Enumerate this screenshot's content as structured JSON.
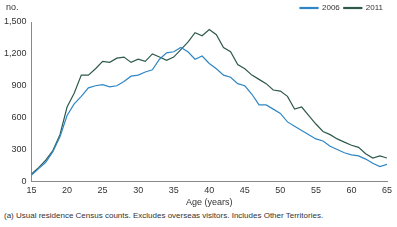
{
  "chart_data": {
    "type": "line",
    "y_label": "no.",
    "x_label": "Age (years)",
    "footnote": "(a) Usual residence Census counts. Excludes overseas visitors. Includes Other Territories.",
    "x": [
      15,
      16,
      17,
      18,
      19,
      20,
      21,
      22,
      23,
      24,
      25,
      26,
      27,
      28,
      29,
      30,
      31,
      32,
      33,
      34,
      35,
      36,
      37,
      38,
      39,
      40,
      41,
      42,
      43,
      44,
      45,
      46,
      47,
      48,
      49,
      50,
      51,
      52,
      53,
      54,
      55,
      56,
      57,
      58,
      59,
      60,
      61,
      62,
      63,
      64,
      65
    ],
    "series": [
      {
        "name": "2006",
        "color": "#2f86c4",
        "values": [
          60,
          120,
          180,
          280,
          420,
          620,
          730,
          800,
          880,
          900,
          910,
          890,
          900,
          940,
          990,
          1000,
          1030,
          1050,
          1150,
          1210,
          1220,
          1260,
          1220,
          1150,
          1180,
          1110,
          1060,
          1000,
          980,
          920,
          900,
          820,
          720,
          720,
          680,
          640,
          560,
          520,
          480,
          440,
          400,
          380,
          330,
          300,
          270,
          250,
          240,
          210,
          170,
          140,
          160
        ]
      },
      {
        "name": "2011",
        "color": "#2e5a4c",
        "values": [
          70,
          130,
          200,
          290,
          440,
          700,
          830,
          1000,
          1000,
          1060,
          1130,
          1120,
          1160,
          1170,
          1120,
          1150,
          1130,
          1200,
          1170,
          1140,
          1170,
          1240,
          1310,
          1400,
          1370,
          1430,
          1380,
          1260,
          1220,
          1100,
          1060,
          1000,
          960,
          920,
          860,
          850,
          800,
          680,
          700,
          620,
          540,
          470,
          440,
          400,
          370,
          340,
          320,
          260,
          220,
          240,
          220
        ]
      }
    ],
    "xlim": [
      15,
      65
    ],
    "xticks": [
      15,
      20,
      25,
      30,
      35,
      40,
      45,
      50,
      55,
      60,
      65
    ],
    "ylim": [
      0,
      1500
    ],
    "yticks": [
      0,
      300,
      600,
      900,
      1200,
      1500
    ],
    "grid": false,
    "legend": "upper right"
  }
}
